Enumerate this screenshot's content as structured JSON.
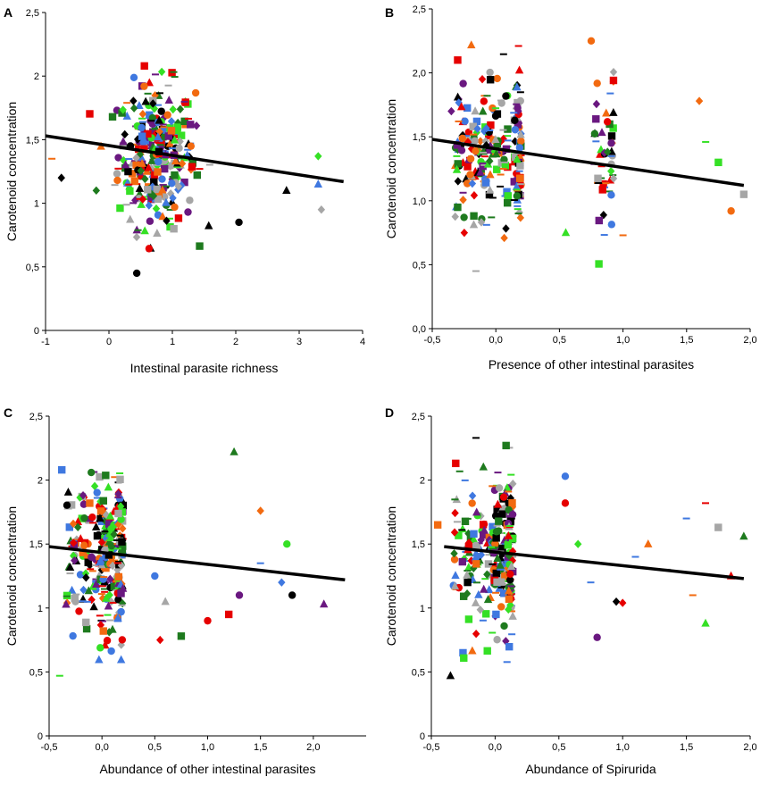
{
  "colors": {
    "black": "#000000",
    "gray": "#a6a6a6",
    "blue": "#3f78e0",
    "red": "#e60000",
    "orange": "#f26a10",
    "purple": "#6a1880",
    "lightgreen": "#35e025",
    "darkgreen": "#1e7a1e"
  },
  "chart_data": [
    {
      "panel": "A",
      "type": "scatter",
      "xlabel": "Intestinal parasite richness",
      "ylabel": "Carotenoid concentration",
      "xlim": [
        -1,
        4
      ],
      "ylim": [
        0,
        2.5
      ],
      "xticks": [
        -1,
        0,
        1,
        2,
        3,
        4
      ],
      "xtick_labels": [
        "-1",
        "0",
        "1",
        "2",
        "3",
        "4"
      ],
      "yticks": [
        0,
        0.5,
        1,
        1.5,
        2,
        2.5
      ],
      "ytick_labels": [
        "0",
        "0,5",
        "1",
        "1,5",
        "2",
        "2,5"
      ],
      "trend": {
        "x": [
          -1,
          3.7
        ],
        "y": [
          1.53,
          1.17
        ]
      },
      "cluster": {
        "center": 0.75,
        "spread": 0.55,
        "count": 320,
        "outliers": [
          [
            -0.9,
            1.35
          ],
          [
            -0.75,
            1.2
          ],
          [
            -0.2,
            1.1
          ],
          [
            2.05,
            0.85
          ],
          [
            2.8,
            1.1
          ],
          [
            3.3,
            1.37
          ],
          [
            3.35,
            0.95
          ],
          [
            3.3,
            1.15
          ]
        ]
      },
      "note": "Point cloud approximated; individual points not fully legible"
    },
    {
      "panel": "B",
      "type": "scatter",
      "xlabel": "Presence of other intestinal parasites",
      "ylabel": "Carotenoid concentration",
      "xlim": [
        -0.5,
        2.0
      ],
      "ylim": [
        0,
        2.5
      ],
      "xticks": [
        -0.5,
        0,
        0.5,
        1,
        1.5,
        2
      ],
      "xtick_labels": [
        "-0,5",
        "0,0",
        "0,5",
        "1,0",
        "1,5",
        "2,0"
      ],
      "yticks": [
        0,
        0.5,
        1,
        1.5,
        2,
        2.5
      ],
      "ytick_labels": [
        "0,0",
        "0,5",
        "1,0",
        "1,5",
        "2,0",
        "2,5"
      ],
      "trend": {
        "x": [
          -0.5,
          1.95
        ],
        "y": [
          1.48,
          1.12
        ]
      },
      "columns": [
        [
          -0.2,
          0.12,
          90
        ],
        [
          0.0,
          0.1,
          80
        ],
        [
          0.17,
          0.03,
          70
        ],
        [
          0.85,
          0.08,
          50
        ]
      ],
      "outliers": [
        [
          1.6,
          1.78
        ],
        [
          1.65,
          1.46
        ],
        [
          1.75,
          1.3
        ],
        [
          1.85,
          0.92
        ],
        [
          1.95,
          1.05
        ],
        [
          0.55,
          0.75
        ],
        [
          -0.25,
          0.87
        ],
        [
          -0.3,
          2.1
        ],
        [
          -0.35,
          1.7
        ],
        [
          0.75,
          2.25
        ],
        [
          1.0,
          0.73
        ]
      ],
      "note": "Point cloud approximated; individual points not fully legible"
    },
    {
      "panel": "C",
      "type": "scatter",
      "xlabel": "Abundance of other intestinal parasites",
      "ylabel": "Carotenoid concentration",
      "xlim": [
        -0.5,
        2.5
      ],
      "ylim": [
        0,
        2.5
      ],
      "xticks": [
        -0.5,
        0,
        0.5,
        1,
        1.5,
        2
      ],
      "xtick_labels": [
        "-0,5",
        "0,0",
        "0,5",
        "1,0",
        "1,5",
        "2,0"
      ],
      "yticks": [
        0,
        0.5,
        1,
        1.5,
        2,
        2.5
      ],
      "ytick_labels": [
        "0",
        "0,5",
        "1",
        "1,5",
        "2",
        "2,5"
      ],
      "trend": {
        "x": [
          -0.5,
          2.3
        ],
        "y": [
          1.48,
          1.22
        ]
      },
      "columns": [
        [
          -0.15,
          0.2,
          110
        ],
        [
          0.05,
          0.07,
          90
        ],
        [
          0.17,
          0.03,
          80
        ]
      ],
      "outliers": [
        [
          0.5,
          1.25
        ],
        [
          0.6,
          1.05
        ],
        [
          0.75,
          0.78
        ],
        [
          1.0,
          0.9
        ],
        [
          1.25,
          2.22
        ],
        [
          1.3,
          1.1
        ],
        [
          1.5,
          1.76
        ],
        [
          1.7,
          1.2
        ],
        [
          1.8,
          1.1
        ],
        [
          2.1,
          1.03
        ],
        [
          0.55,
          0.75
        ],
        [
          -0.4,
          0.47
        ],
        [
          -0.38,
          2.08
        ],
        [
          1.5,
          1.35
        ],
        [
          1.75,
          1.5
        ],
        [
          1.2,
          0.95
        ]
      ],
      "note": "Point cloud approximated; individual points not fully legible"
    },
    {
      "panel": "D",
      "type": "scatter",
      "xlabel": "Abundance of Spirurida",
      "ylabel": "Carotenoid concentration",
      "xlim": [
        -0.5,
        2.0
      ],
      "ylim": [
        0,
        2.5
      ],
      "xticks": [
        -0.5,
        0,
        0.5,
        1,
        1.5,
        2
      ],
      "xtick_labels": [
        "-0,5",
        "0,0",
        "0,5",
        "1,0",
        "1,5",
        "2,0"
      ],
      "yticks": [
        0,
        0.5,
        1,
        1.5,
        2,
        2.5
      ],
      "ytick_labels": [
        "0",
        "0,5",
        "1",
        "1,5",
        "2",
        "2,5"
      ],
      "trend": {
        "x": [
          -0.4,
          1.95
        ],
        "y": [
          1.48,
          1.23
        ]
      },
      "columns": [
        [
          -0.15,
          0.18,
          110
        ],
        [
          0.05,
          0.08,
          100
        ],
        [
          0.12,
          0.02,
          60
        ]
      ],
      "outliers": [
        [
          0.55,
          2.03
        ],
        [
          0.55,
          1.82
        ],
        [
          0.65,
          1.5
        ],
        [
          0.75,
          1.2
        ],
        [
          0.8,
          0.77
        ],
        [
          0.95,
          1.05
        ],
        [
          1.0,
          1.04
        ],
        [
          1.1,
          1.4
        ],
        [
          1.2,
          1.5
        ],
        [
          1.35,
          1.3
        ],
        [
          1.5,
          1.7
        ],
        [
          1.55,
          1.1
        ],
        [
          1.65,
          1.82
        ],
        [
          1.65,
          0.88
        ],
        [
          1.75,
          1.63
        ],
        [
          1.85,
          1.25
        ],
        [
          1.95,
          1.56
        ],
        [
          -0.35,
          0.47
        ],
        [
          -0.45,
          1.65
        ],
        [
          -0.15,
          2.33
        ]
      ],
      "note": "Point cloud approximated; individual points not fully legible"
    }
  ]
}
